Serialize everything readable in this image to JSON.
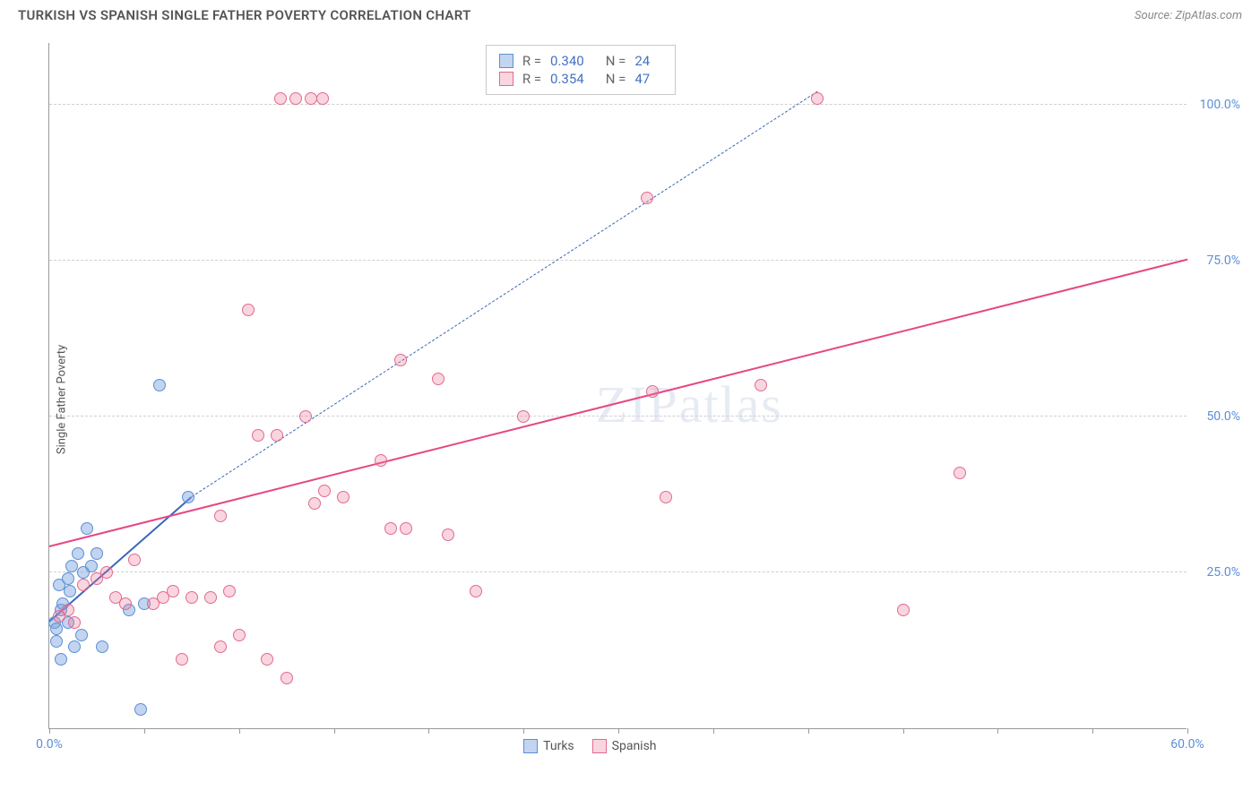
{
  "header": {
    "title": "TURKISH VS SPANISH SINGLE FATHER POVERTY CORRELATION CHART",
    "source_prefix": "Source: ",
    "source": "ZipAtlas.com"
  },
  "chart": {
    "type": "scatter",
    "ylabel": "Single Father Poverty",
    "watermark": "ZIPatlas",
    "background_color": "#ffffff",
    "grid_color": "#d0d0d0",
    "axis_color": "#999999",
    "label_color": "#5b8fd6",
    "xlim": [
      0,
      60
    ],
    "ylim": [
      0,
      110
    ],
    "x_ticks": [
      0,
      5,
      10,
      15,
      20,
      25,
      30,
      35,
      40,
      45,
      50,
      55,
      60
    ],
    "x_tick_labels": {
      "0": "0.0%",
      "60": "60.0%"
    },
    "y_gridlines": [
      25,
      50,
      75,
      100
    ],
    "y_tick_labels": {
      "25": "25.0%",
      "50": "50.0%",
      "75": "75.0%",
      "100": "100.0%"
    },
    "point_radius": 7,
    "point_stroke_width": 1,
    "series": [
      {
        "name": "Turks",
        "fill": "rgba(120,160,220,0.45)",
        "stroke": "#5b8fd6",
        "stats": {
          "R": "0.340",
          "N": "24"
        },
        "trend": {
          "color": "#3a67b8",
          "solid_segment": {
            "x1": 0,
            "y1": 17,
            "x2": 7.5,
            "y2": 37
          },
          "dashed_segment": {
            "x1": 7.5,
            "y1": 37,
            "x2": 40.5,
            "y2": 102
          }
        },
        "points": [
          [
            0.3,
            17
          ],
          [
            0.4,
            16
          ],
          [
            0.6,
            19
          ],
          [
            0.5,
            23
          ],
          [
            1.0,
            24
          ],
          [
            1.2,
            26
          ],
          [
            0.7,
            20
          ],
          [
            1.8,
            25
          ],
          [
            2.2,
            26
          ],
          [
            2.0,
            32
          ],
          [
            1.5,
            28
          ],
          [
            2.5,
            28
          ],
          [
            1.1,
            22
          ],
          [
            1.3,
            13
          ],
          [
            2.8,
            13
          ],
          [
            1.0,
            17
          ],
          [
            0.4,
            14
          ],
          [
            0.6,
            11
          ],
          [
            1.7,
            15
          ],
          [
            4.2,
            19
          ],
          [
            5.0,
            20
          ],
          [
            5.8,
            55
          ],
          [
            4.8,
            3
          ],
          [
            7.3,
            37
          ]
        ]
      },
      {
        "name": "Spanish",
        "fill": "rgba(235,120,150,0.30)",
        "stroke": "#e26a8f",
        "stats": {
          "R": "0.354",
          "N": "47"
        },
        "trend": {
          "color": "#e64784",
          "solid_segment": {
            "x1": 0,
            "y1": 29,
            "x2": 60,
            "y2": 75
          }
        },
        "points": [
          [
            0.5,
            18
          ],
          [
            1.0,
            19
          ],
          [
            1.3,
            17
          ],
          [
            1.8,
            23
          ],
          [
            2.5,
            24
          ],
          [
            3.0,
            25
          ],
          [
            3.5,
            21
          ],
          [
            4.0,
            20
          ],
          [
            4.5,
            27
          ],
          [
            5.5,
            20
          ],
          [
            6.0,
            21
          ],
          [
            6.5,
            22
          ],
          [
            7.0,
            11
          ],
          [
            7.5,
            21
          ],
          [
            8.5,
            21
          ],
          [
            9.0,
            34
          ],
          [
            9.5,
            22
          ],
          [
            10.0,
            15
          ],
          [
            10.5,
            67
          ],
          [
            11.0,
            47
          ],
          [
            11.5,
            11
          ],
          [
            12.0,
            47
          ],
          [
            12.5,
            8
          ],
          [
            13.5,
            50
          ],
          [
            14.0,
            36
          ],
          [
            14.5,
            38
          ],
          [
            15.5,
            37
          ],
          [
            17.5,
            43
          ],
          [
            18.0,
            32
          ],
          [
            18.5,
            59
          ],
          [
            18.8,
            32
          ],
          [
            20.5,
            56
          ],
          [
            21.0,
            31
          ],
          [
            22.5,
            22
          ],
          [
            25.0,
            50
          ],
          [
            9.0,
            13
          ],
          [
            31.5,
            85
          ],
          [
            31.8,
            54
          ],
          [
            32.5,
            37
          ],
          [
            37.5,
            55
          ],
          [
            40.5,
            101
          ],
          [
            45.0,
            19
          ],
          [
            48.0,
            41
          ],
          [
            12.2,
            101
          ],
          [
            13.0,
            101
          ],
          [
            13.8,
            101
          ],
          [
            14.4,
            101
          ]
        ]
      }
    ],
    "stats_box": {
      "R_label": "R =",
      "N_label": "N ="
    },
    "bottom_legend": [
      "Turks",
      "Spanish"
    ]
  }
}
